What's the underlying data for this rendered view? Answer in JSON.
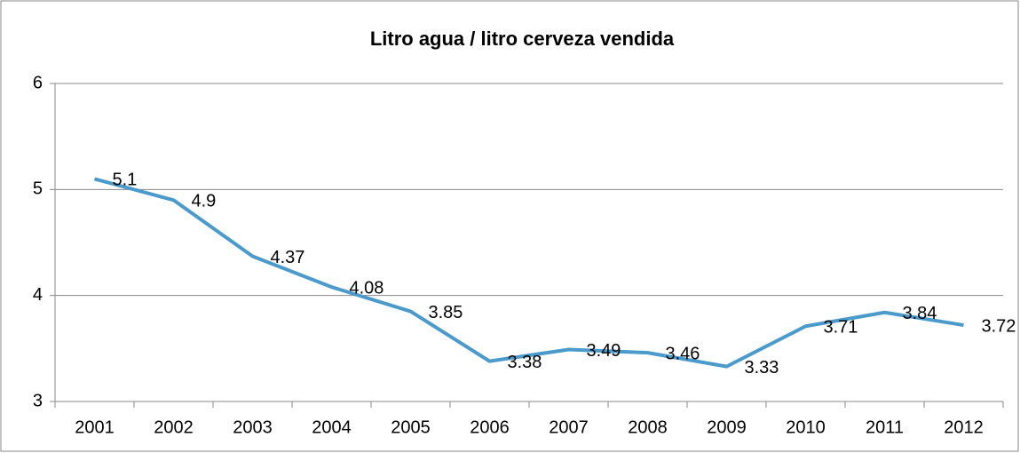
{
  "chart_data": {
    "type": "line",
    "title": "Litro agua / litro cerveza vendida",
    "categories": [
      "2001",
      "2002",
      "2003",
      "2004",
      "2005",
      "2006",
      "2007",
      "2008",
      "2009",
      "2010",
      "2011",
      "2012"
    ],
    "values": [
      5.1,
      4.9,
      4.37,
      4.08,
      3.85,
      3.38,
      3.49,
      3.46,
      3.33,
      3.71,
      3.84,
      3.72
    ],
    "color": "#4a9acb",
    "ylim": [
      3,
      6
    ],
    "yticks": [
      3,
      4,
      5,
      6
    ],
    "grid": true
  }
}
